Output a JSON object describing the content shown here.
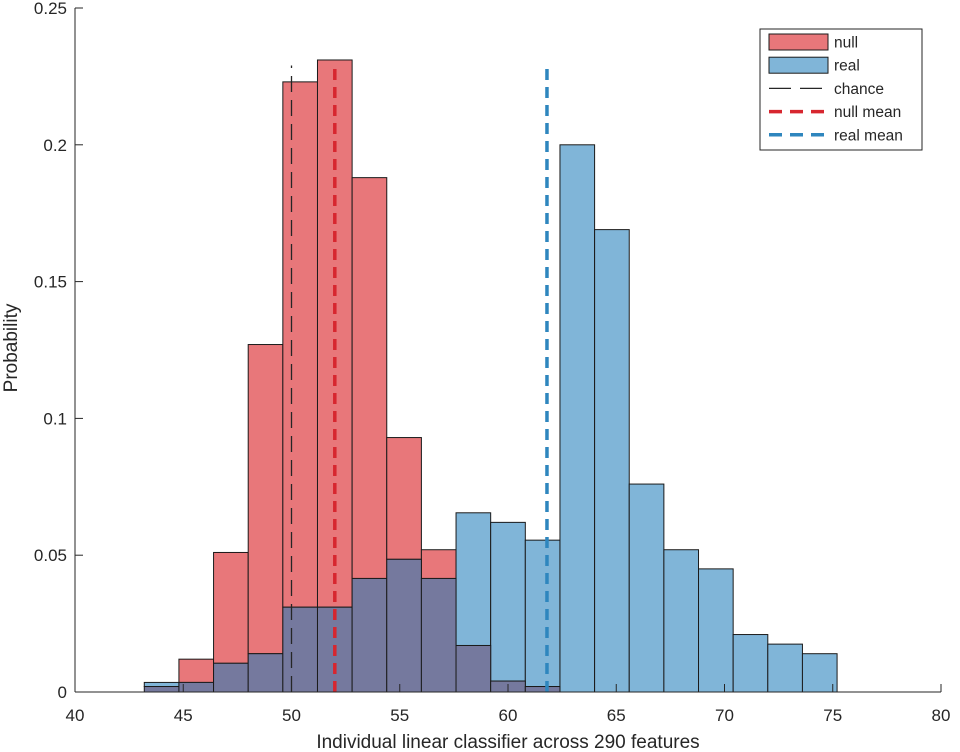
{
  "chart_data": {
    "type": "bar",
    "subtype": "overlapping-histogram",
    "title": "",
    "xlabel": "Individual linear classifier across 290 features",
    "ylabel": "Probability",
    "xlim": [
      40,
      80
    ],
    "ylim": [
      0,
      0.25
    ],
    "xticks": [
      40,
      45,
      50,
      55,
      60,
      65,
      70,
      75,
      80
    ],
    "yticks": [
      0,
      0.05,
      0.1,
      0.15,
      0.2,
      0.25
    ],
    "ytick_labels": [
      "0",
      "0.05",
      "0.1",
      "0.15",
      "0.2",
      "0.25"
    ],
    "grid": false,
    "legend_position": "top-right",
    "bin_edges": [
      43.2,
      44.8,
      46.4,
      48.0,
      49.6,
      51.2,
      52.8,
      54.4,
      56.0,
      57.6,
      59.2,
      60.8,
      62.4,
      64.0,
      65.6,
      67.2,
      68.8,
      70.4,
      72.0,
      73.6,
      75.2
    ],
    "series": [
      {
        "name": "null",
        "color": "#E8777A",
        "values": [
          0.002,
          0.012,
          0.051,
          0.127,
          0.223,
          0.231,
          0.188,
          0.093,
          0.052,
          0.017,
          0.004,
          0.002,
          0,
          0,
          0,
          0,
          0,
          0,
          0,
          0
        ]
      },
      {
        "name": "real",
        "color": "#80B5D8",
        "values": [
          0.0035,
          0.0035,
          0.0105,
          0.014,
          0.031,
          0.031,
          0.0415,
          0.0485,
          0.0415,
          0.0655,
          0.062,
          0.0555,
          0.2,
          0.169,
          0.076,
          0.052,
          0.045,
          0.021,
          0.0175,
          0.014
        ]
      }
    ],
    "overlap_color": "#75799E",
    "reference_lines": [
      {
        "name": "chance",
        "x": 50,
        "y_top": 0.229,
        "color": "#262626",
        "style": "long-dash"
      },
      {
        "name": "null mean",
        "x": 52.0,
        "y_top": 0.228,
        "color": "#D7262F",
        "style": "dash"
      },
      {
        "name": "real mean",
        "x": 61.8,
        "y_top": 0.228,
        "color": "#2E86BE",
        "style": "dash"
      }
    ],
    "legend": [
      "null",
      "real",
      "chance",
      "null mean",
      "real mean"
    ]
  }
}
